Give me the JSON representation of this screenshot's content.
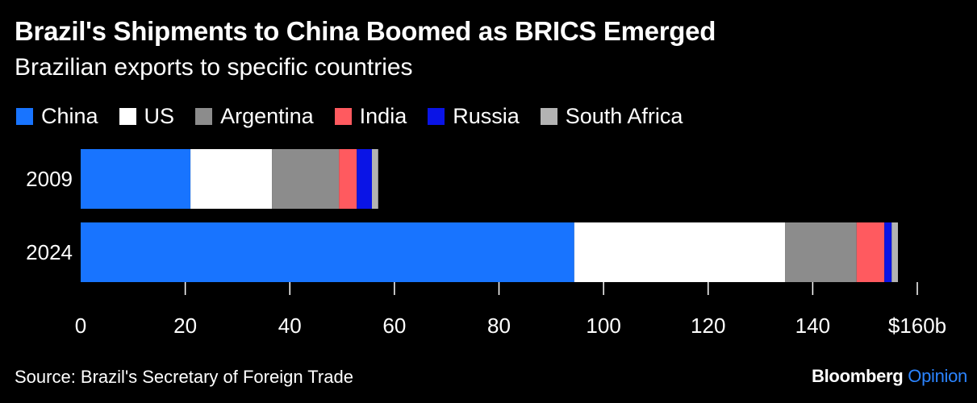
{
  "header": {
    "title": "Brazil's Shipments to China Boomed as BRICS Emerged",
    "subtitle": "Brazilian exports to specific countries"
  },
  "footer": {
    "source": "Source: Brazil's Secretary of Foreign Trade",
    "brand_main": "Bloomberg",
    "brand_accent": "Opinion"
  },
  "chart_data": {
    "type": "bar",
    "orientation": "horizontal",
    "stacked": true,
    "categories": [
      "2009",
      "2024"
    ],
    "series": [
      {
        "name": "China",
        "color": "#1874ff",
        "values": [
          21,
          94.4
        ]
      },
      {
        "name": "US",
        "color": "#ffffff",
        "values": [
          15.6,
          40.3
        ]
      },
      {
        "name": "Argentina",
        "color": "#8c8c8c",
        "values": [
          12.8,
          13.7
        ]
      },
      {
        "name": "India",
        "color": "#ff5a5f",
        "values": [
          3.4,
          5.3
        ]
      },
      {
        "name": "Russia",
        "color": "#0a14e6",
        "values": [
          2.9,
          1.4
        ]
      },
      {
        "name": "South Africa",
        "color": "#b3b3b3",
        "values": [
          1.2,
          1.2
        ]
      }
    ],
    "xlim": [
      0,
      160
    ],
    "xticks": [
      0,
      20,
      40,
      60,
      80,
      100,
      120,
      140,
      160
    ],
    "xtick_labels": [
      "0",
      "20",
      "40",
      "60",
      "80",
      "100",
      "120",
      "140",
      "$160b"
    ],
    "legend_position": "top-left",
    "grid": false
  }
}
